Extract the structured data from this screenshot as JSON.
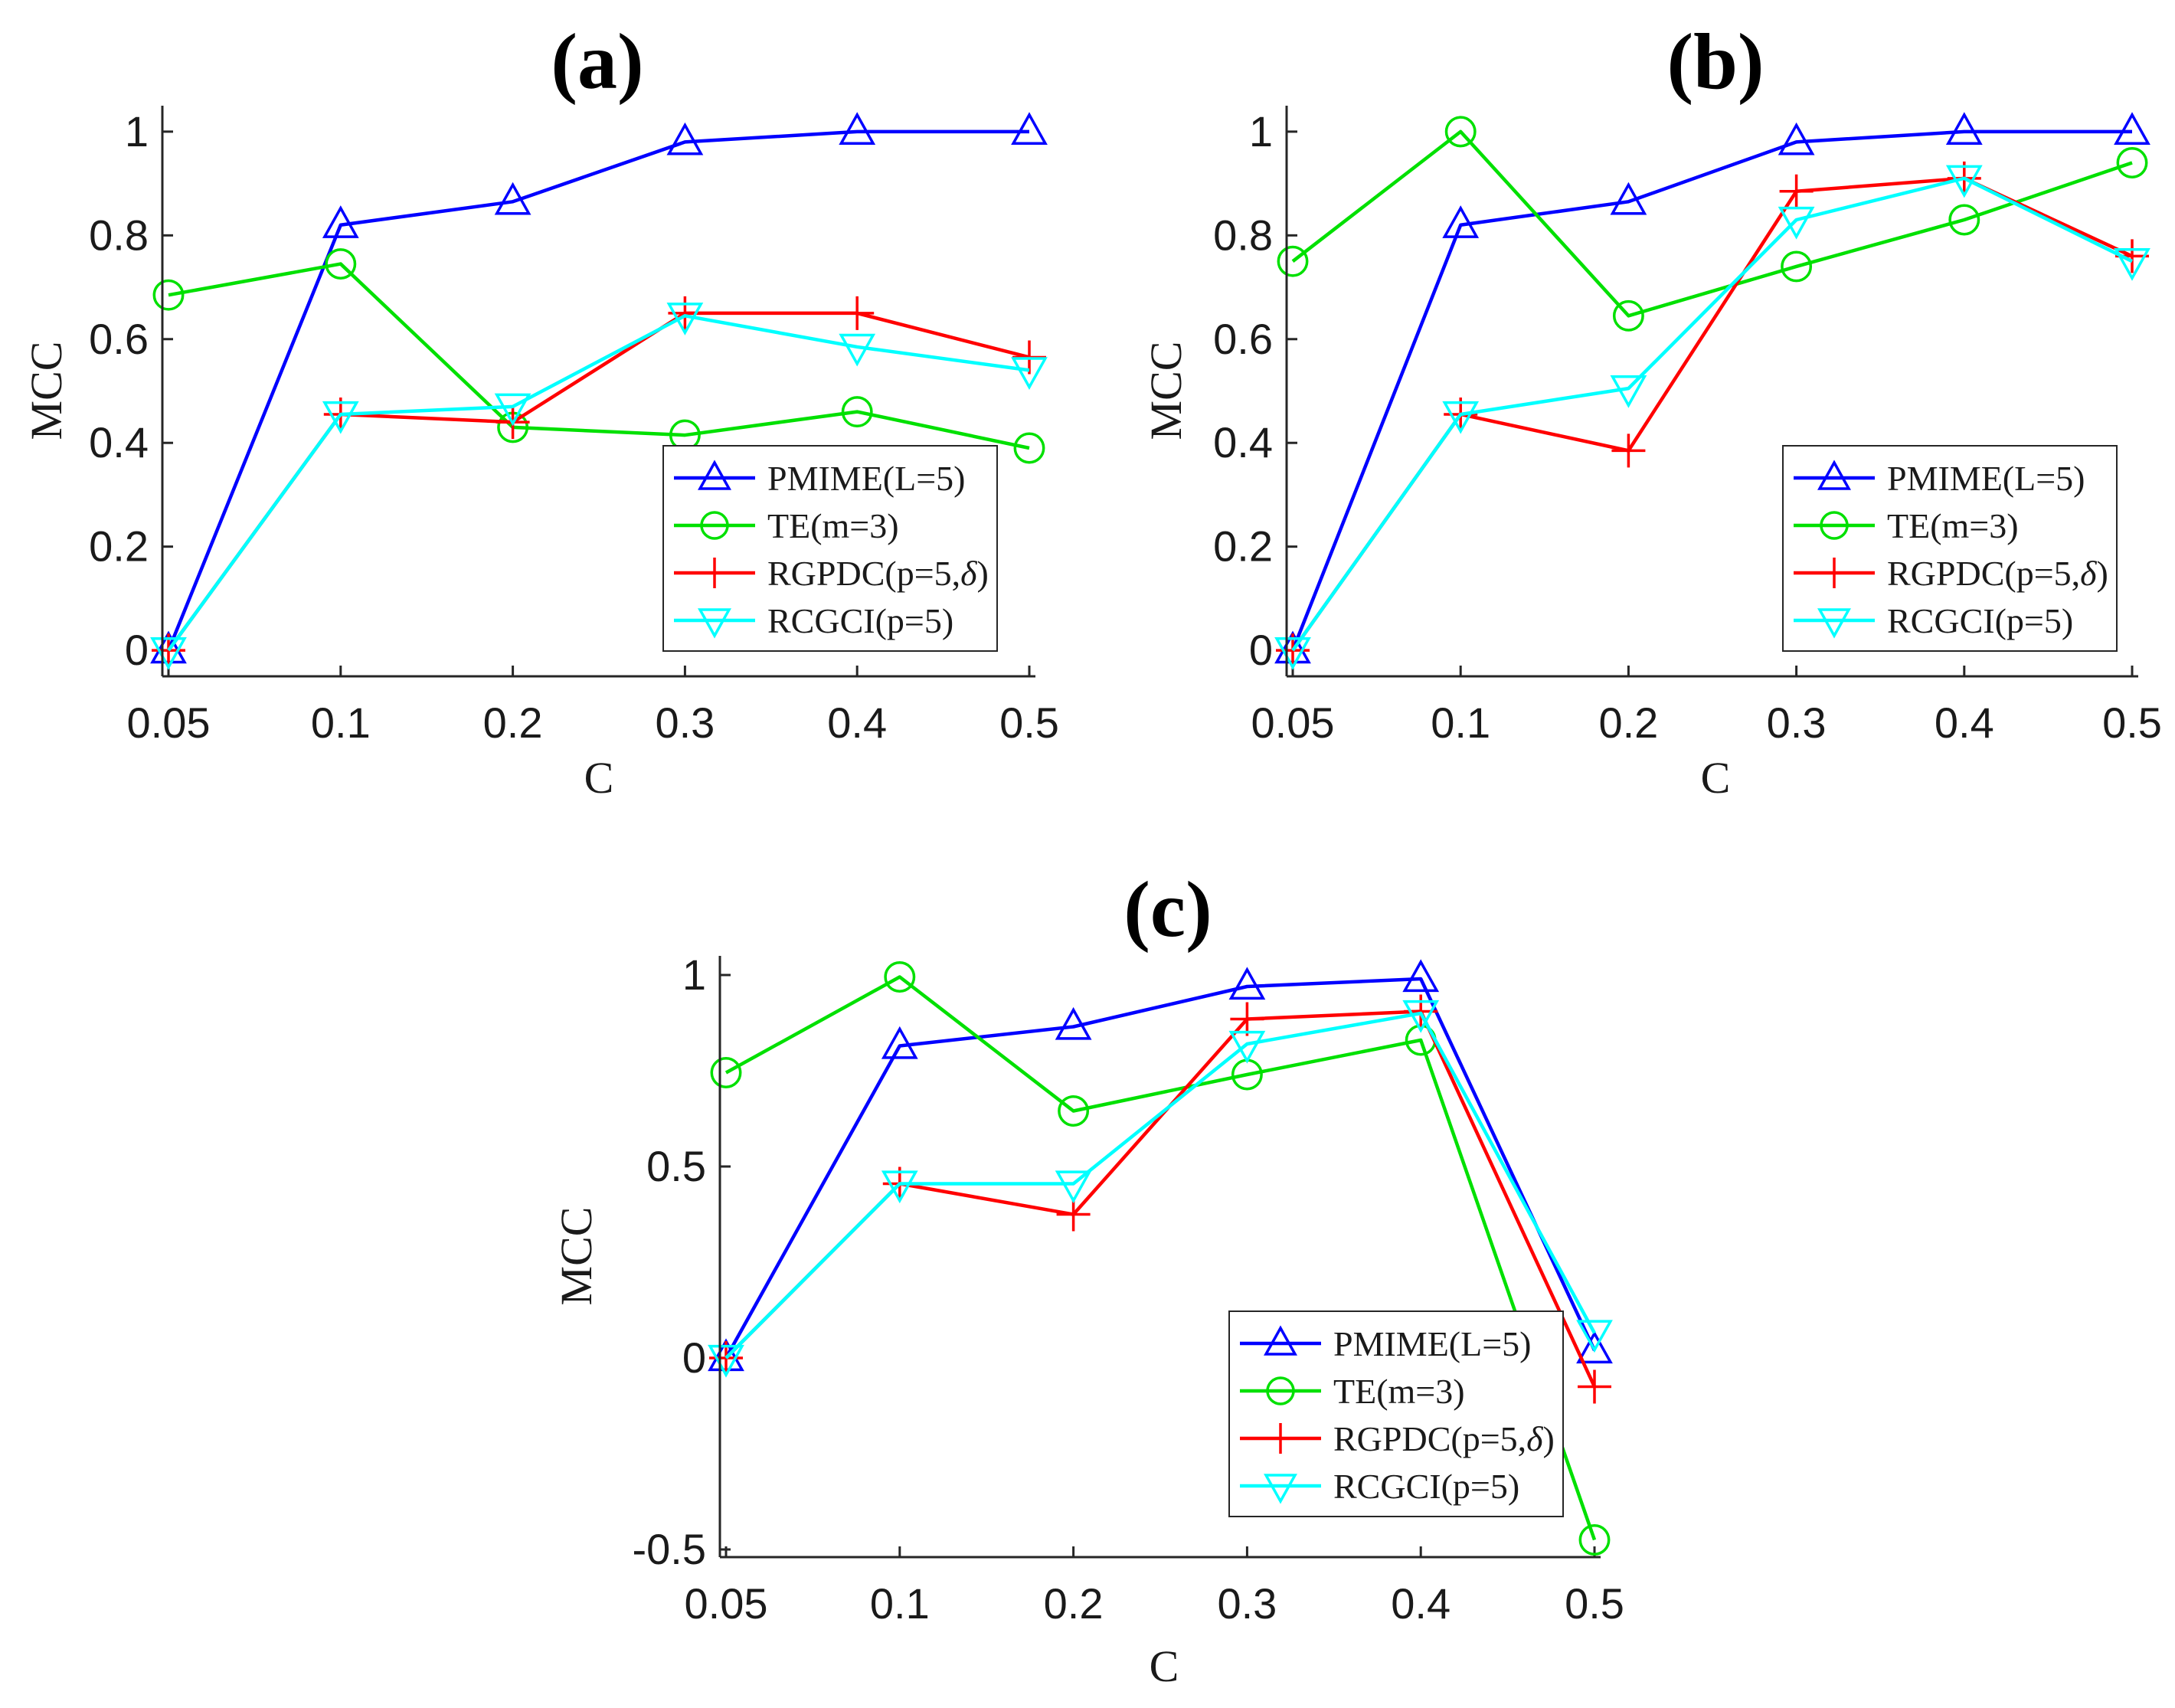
{
  "chart_data": [
    {
      "type": "line",
      "title": "(a)",
      "xlabel": "C",
      "ylabel": "MCC",
      "categories": [
        "0.05",
        "0.1",
        "0.2",
        "0.3",
        "0.4",
        "0.5"
      ],
      "ylim": [
        -0.05,
        1.05
      ],
      "yticks": [
        0,
        0.2,
        0.4,
        0.6,
        0.8,
        1
      ],
      "ytick_labels": [
        "0",
        "0.2",
        "0.4",
        "0.6",
        "0.8",
        "1"
      ],
      "legend_position": "lower-right",
      "series": [
        {
          "name": "PMIME(L=5)",
          "color": "#0000ff",
          "marker": "triangle-up",
          "values": [
            0.0,
            0.82,
            0.865,
            0.98,
            1.0,
            1.0
          ]
        },
        {
          "name": "TE(m=3)",
          "color": "#00e000",
          "marker": "circle",
          "values": [
            0.685,
            0.745,
            0.43,
            0.415,
            0.46,
            0.39
          ]
        },
        {
          "name": "RGPDC(p=5,δ)",
          "name_main": "RGPDC(p=5,",
          "name_italic": "δ",
          "name_end": ")",
          "color": "#ff0000",
          "marker": "plus",
          "values": [
            0.0,
            0.455,
            0.44,
            0.65,
            0.65,
            0.565
          ]
        },
        {
          "name": "RCGCI(p=5)",
          "color": "#00ffff",
          "marker": "triangle-down",
          "values": [
            0.0,
            0.455,
            0.47,
            0.645,
            0.585,
            0.54
          ]
        }
      ]
    },
    {
      "type": "line",
      "title": "(b)",
      "xlabel": "C",
      "ylabel": "MCC",
      "categories": [
        "0.05",
        "0.1",
        "0.2",
        "0.3",
        "0.4",
        "0.5"
      ],
      "ylim": [
        -0.05,
        1.05
      ],
      "yticks": [
        0,
        0.2,
        0.4,
        0.6,
        0.8,
        1
      ],
      "ytick_labels": [
        "0",
        "0.2",
        "0.4",
        "0.6",
        "0.8",
        "1"
      ],
      "legend_position": "lower-right",
      "series": [
        {
          "name": "PMIME(L=5)",
          "color": "#0000ff",
          "marker": "triangle-up",
          "values": [
            0.0,
            0.82,
            0.865,
            0.98,
            1.0,
            1.0
          ]
        },
        {
          "name": "TE(m=3)",
          "color": "#00e000",
          "marker": "circle",
          "values": [
            0.75,
            1.0,
            0.645,
            0.74,
            0.83,
            0.94
          ]
        },
        {
          "name": "RGPDC(p=5,δ)",
          "name_main": "RGPDC(p=5,",
          "name_italic": "δ",
          "name_end": ")",
          "color": "#ff0000",
          "marker": "plus",
          "values": [
            0.0,
            0.455,
            0.385,
            0.885,
            0.91,
            0.76
          ]
        },
        {
          "name": "RCGCI(p=5)",
          "color": "#00ffff",
          "marker": "triangle-down",
          "values": [
            0.0,
            0.455,
            0.505,
            0.83,
            0.91,
            0.75
          ]
        }
      ]
    },
    {
      "type": "line",
      "title": "(c)",
      "xlabel": "C",
      "ylabel": "MCC",
      "categories": [
        "0.05",
        "0.1",
        "0.2",
        "0.3",
        "0.4",
        "0.5"
      ],
      "ylim": [
        -0.52,
        1.05
      ],
      "yticks": [
        -0.5,
        0,
        0.5,
        1
      ],
      "ytick_labels": [
        "-0.5",
        "0",
        "0.5",
        "1"
      ],
      "legend_position": "lower-right",
      "series": [
        {
          "name": "PMIME(L=5)",
          "color": "#0000ff",
          "marker": "triangle-up",
          "values": [
            0.0,
            0.815,
            0.865,
            0.97,
            0.99,
            0.02
          ]
        },
        {
          "name": "TE(m=3)",
          "color": "#00e000",
          "marker": "circle",
          "values": [
            0.745,
            0.995,
            0.645,
            0.74,
            0.83,
            -0.475
          ]
        },
        {
          "name": "RGPDC(p=5,δ)",
          "name_main": "RGPDC(p=5,",
          "name_italic": "δ",
          "name_end": ")",
          "color": "#ff0000",
          "marker": "plus",
          "values": [
            0.0,
            0.455,
            0.375,
            0.885,
            0.905,
            -0.075
          ]
        },
        {
          "name": "RCGCI(p=5)",
          "color": "#00ffff",
          "marker": "triangle-down",
          "values": [
            0.0,
            0.455,
            0.455,
            0.82,
            0.9,
            0.065
          ]
        }
      ]
    }
  ]
}
